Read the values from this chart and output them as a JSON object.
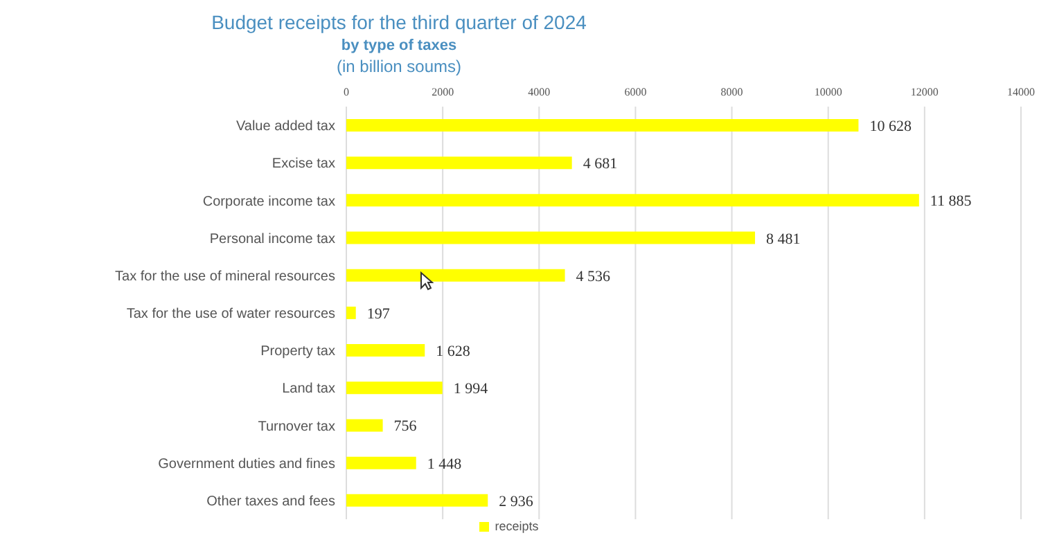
{
  "chart_data": {
    "type": "bar",
    "orientation": "horizontal",
    "title": "Budget receipts for the third quarter of 2024",
    "subtitle": "by type of taxes",
    "annotations": [
      "(in billion soums)"
    ],
    "categories": [
      "Value added tax",
      "Excise tax",
      "Corporate income tax",
      "Personal income tax",
      "Tax for the use of mineral resources",
      "Tax for the use of water resources",
      "Property tax",
      "Land tax",
      "Turnover tax",
      "Government duties and fines",
      "Other taxes and fees"
    ],
    "series": [
      {
        "name": "receipts",
        "color": "#ffff00",
        "values": [
          10628,
          4681,
          11885,
          8481,
          4536,
          197,
          1628,
          1994,
          756,
          1448,
          2936
        ],
        "value_labels": [
          "10 628",
          "4 681",
          "11 885",
          "8 481",
          "4 536",
          "197",
          "1 628",
          "1 994",
          "756",
          "1 448",
          "2 936"
        ]
      }
    ],
    "xlim": [
      0,
      14000
    ],
    "xticks": [
      0,
      2000,
      4000,
      6000,
      8000,
      10000,
      12000,
      14000
    ],
    "grid": "x",
    "legend": "bottom"
  }
}
